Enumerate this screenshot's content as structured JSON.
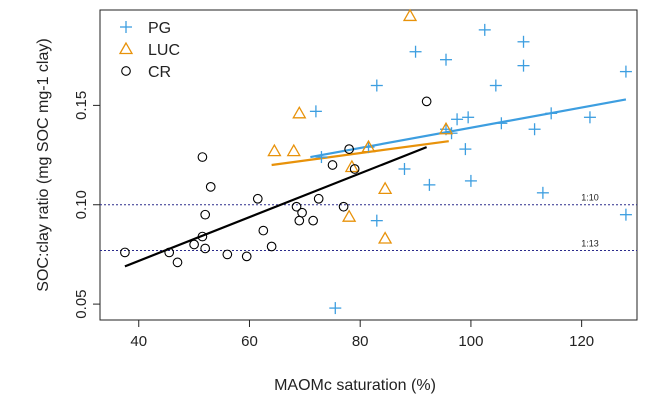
{
  "chart_data": {
    "type": "scatter",
    "xlabel": "MAOMc saturation (%)",
    "ylabel": "SOC:clay ratio (mg SOC mg-1 clay)",
    "xlim": [
      33,
      130
    ],
    "ylim": [
      0.042,
      0.198
    ],
    "x_ticks": [
      40,
      60,
      80,
      100,
      120
    ],
    "y_ticks": [
      0.05,
      0.1,
      0.15
    ],
    "x_tick_labels": [
      "40",
      "60",
      "80",
      "100",
      "120"
    ],
    "y_tick_labels": [
      "0.05",
      "0.10",
      "0.15"
    ],
    "legend_position": "top-left",
    "colors": {
      "PG": "#3d9ee0",
      "LUC": "#e8920a",
      "CR": "#000000",
      "ref": "#2b2b8c"
    },
    "series": [
      {
        "name": "PG",
        "marker": "plus",
        "points": [
          [
            72,
            0.147
          ],
          [
            83,
            0.16
          ],
          [
            88,
            0.118
          ],
          [
            90,
            0.177
          ],
          [
            92.5,
            0.11
          ],
          [
            95.5,
            0.173
          ],
          [
            97.5,
            0.143
          ],
          [
            99.5,
            0.144
          ],
          [
            99,
            0.128
          ],
          [
            100,
            0.112
          ],
          [
            102.5,
            0.188
          ],
          [
            104.5,
            0.16
          ],
          [
            105.5,
            0.141
          ],
          [
            109.5,
            0.182
          ],
          [
            109.5,
            0.17
          ],
          [
            111.5,
            0.138
          ],
          [
            113,
            0.106
          ],
          [
            114.5,
            0.146
          ],
          [
            121.5,
            0.144
          ],
          [
            128,
            0.167
          ],
          [
            128,
            0.095
          ],
          [
            83,
            0.092
          ],
          [
            75.5,
            0.048
          ],
          [
            73,
            0.124
          ],
          [
            81.5,
            0.129
          ],
          [
            96.5,
            0.136
          ],
          [
            95.5,
            0.138
          ]
        ]
      },
      {
        "name": "LUC",
        "marker": "triangle",
        "points": [
          [
            89,
            0.195
          ],
          [
            69,
            0.146
          ],
          [
            64.5,
            0.127
          ],
          [
            68,
            0.127
          ],
          [
            78.5,
            0.119
          ],
          [
            78,
            0.094
          ],
          [
            84.5,
            0.108
          ],
          [
            84.5,
            0.083
          ],
          [
            81.5,
            0.129
          ],
          [
            95.5,
            0.138
          ]
        ]
      },
      {
        "name": "CR",
        "marker": "circle",
        "points": [
          [
            37.5,
            0.076
          ],
          [
            45.5,
            0.076
          ],
          [
            47,
            0.071
          ],
          [
            50,
            0.08
          ],
          [
            51.5,
            0.084
          ],
          [
            52,
            0.078
          ],
          [
            51.5,
            0.124
          ],
          [
            52,
            0.095
          ],
          [
            53,
            0.109
          ],
          [
            56,
            0.075
          ],
          [
            59.5,
            0.074
          ],
          [
            61.5,
            0.103
          ],
          [
            62.5,
            0.087
          ],
          [
            64,
            0.079
          ],
          [
            68.5,
            0.099
          ],
          [
            69,
            0.092
          ],
          [
            69.5,
            0.096
          ],
          [
            71.5,
            0.092
          ],
          [
            72.5,
            0.103
          ],
          [
            75,
            0.12
          ],
          [
            77,
            0.099
          ],
          [
            78,
            0.128
          ],
          [
            79,
            0.118
          ],
          [
            92,
            0.152
          ]
        ]
      }
    ],
    "fit_lines": [
      {
        "series": "PG",
        "x": [
          71,
          128
        ],
        "y": [
          0.124,
          0.153
        ]
      },
      {
        "series": "LUC",
        "x": [
          64,
          96
        ],
        "y": [
          0.12,
          0.132
        ]
      },
      {
        "series": "CR",
        "x": [
          37.5,
          92
        ],
        "y": [
          0.069,
          0.129
        ]
      }
    ],
    "reference_lines": [
      {
        "label": "1:10",
        "y": 0.1
      },
      {
        "label": "1:13",
        "y": 0.077
      }
    ]
  }
}
